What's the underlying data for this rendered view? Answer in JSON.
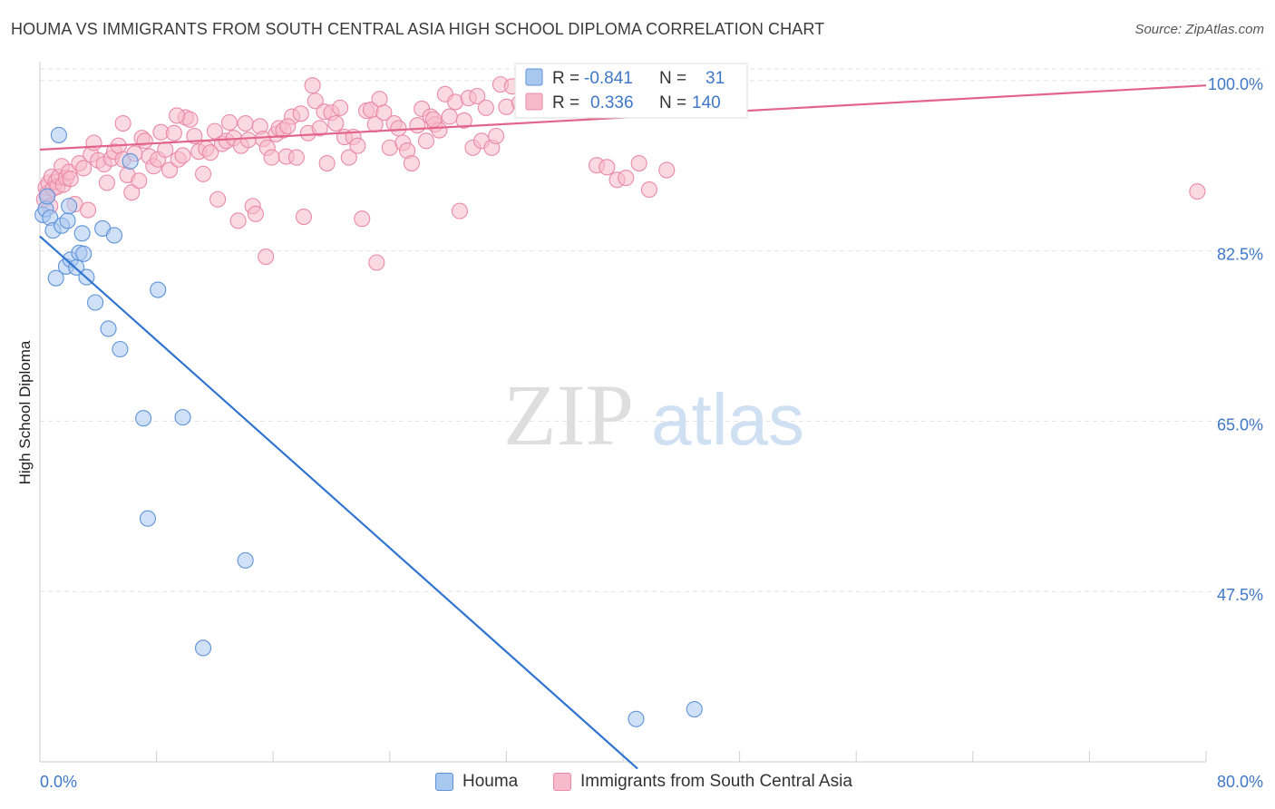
{
  "header": {
    "title": "HOUMA VS IMMIGRANTS FROM SOUTH CENTRAL ASIA HIGH SCHOOL DIPLOMA CORRELATION CHART",
    "source": "Source: ZipAtlas.com"
  },
  "watermark": {
    "zip": "ZIP",
    "atlas": "atlas"
  },
  "colors": {
    "houma_fill": "#a9c8f0",
    "houma_stroke": "#5e93d9",
    "houma_line": "#2f74d0",
    "immig_fill": "#f7b9cc",
    "immig_stroke": "#e98aa8",
    "immig_line": "#e2638c",
    "tick_label": "#3f78c8",
    "grid": "#e3e3e3"
  },
  "chart_data": {
    "type": "scatter",
    "title": "HOUMA VS IMMIGRANTS FROM SOUTH CENTRAL ASIA HIGH SCHOOL DIPLOMA CORRELATION CHART",
    "xlabel": "",
    "ylabel": "High School Diploma",
    "xlim": [
      0,
      80
    ],
    "ylim": [
      30,
      102.5
    ],
    "x_tick_labels": [
      "0.0%",
      "80.0%"
    ],
    "y_ticks": [
      {
        "value": 100,
        "label": "100.0%"
      },
      {
        "value": 82.5,
        "label": "82.5%"
      },
      {
        "value": 65,
        "label": "65.0%"
      },
      {
        "value": 47.5,
        "label": "47.5%"
      }
    ],
    "grid": true,
    "legend_position": "top-center",
    "legend": [
      {
        "r_label": "R =",
        "r_value": "-0.841",
        "n_label": "N =",
        "n_value": "31"
      },
      {
        "r_label": "R =",
        "r_value": "0.336",
        "n_label": "N =",
        "n_value": "140"
      }
    ],
    "bottom_legend": [
      "Houma",
      "Immigrants from South Central Asia"
    ],
    "series": [
      {
        "name": "Houma",
        "points": [
          [
            0.2,
            86.2
          ],
          [
            0.4,
            86.8
          ],
          [
            0.5,
            88.1
          ],
          [
            0.7,
            85.9
          ],
          [
            0.9,
            84.6
          ],
          [
            1.1,
            79.7
          ],
          [
            1.3,
            94.4
          ],
          [
            1.5,
            85.1
          ],
          [
            1.8,
            80.9
          ],
          [
            1.9,
            85.6
          ],
          [
            2.0,
            87.1
          ],
          [
            2.1,
            81.6
          ],
          [
            2.5,
            80.8
          ],
          [
            2.7,
            82.3
          ],
          [
            2.9,
            84.3
          ],
          [
            3.0,
            82.2
          ],
          [
            3.2,
            79.8
          ],
          [
            3.8,
            77.2
          ],
          [
            4.3,
            84.8
          ],
          [
            4.7,
            74.5
          ],
          [
            5.1,
            84.1
          ],
          [
            5.5,
            72.4
          ],
          [
            6.2,
            91.7
          ],
          [
            7.1,
            65.3
          ],
          [
            7.4,
            55.0
          ],
          [
            8.1,
            78.5
          ],
          [
            9.8,
            65.4
          ],
          [
            11.2,
            41.7
          ],
          [
            14.1,
            50.7
          ],
          [
            40.9,
            34.4
          ],
          [
            44.9,
            35.4
          ]
        ],
        "trendline": [
          [
            0,
            84.0
          ],
          [
            41,
            29.3
          ]
        ]
      },
      {
        "name": "Immigrants from South Central Asia",
        "points": [
          [
            0.3,
            87.8
          ],
          [
            0.4,
            89.0
          ],
          [
            0.5,
            88.4
          ],
          [
            0.6,
            89.5
          ],
          [
            0.7,
            87.1
          ],
          [
            0.8,
            90.1
          ],
          [
            0.9,
            88.9
          ],
          [
            1.1,
            89.6
          ],
          [
            1.2,
            89.1
          ],
          [
            1.3,
            90.1
          ],
          [
            1.5,
            91.2
          ],
          [
            1.6,
            89.3
          ],
          [
            1.8,
            90.0
          ],
          [
            2.0,
            90.6
          ],
          [
            2.1,
            89.9
          ],
          [
            2.4,
            87.3
          ],
          [
            2.7,
            91.5
          ],
          [
            3.0,
            91.0
          ],
          [
            3.3,
            86.7
          ],
          [
            3.5,
            92.4
          ],
          [
            3.7,
            93.6
          ],
          [
            4.0,
            91.8
          ],
          [
            4.4,
            91.4
          ],
          [
            4.6,
            89.5
          ],
          [
            4.9,
            92.0
          ],
          [
            5.1,
            92.7
          ],
          [
            5.4,
            93.3
          ],
          [
            5.7,
            91.9
          ],
          [
            6.0,
            90.3
          ],
          [
            6.3,
            88.5
          ],
          [
            6.5,
            92.5
          ],
          [
            6.8,
            89.7
          ],
          [
            7.0,
            94.1
          ],
          [
            7.2,
            93.8
          ],
          [
            7.5,
            92.2
          ],
          [
            7.8,
            91.2
          ],
          [
            8.1,
            91.9
          ],
          [
            8.3,
            94.7
          ],
          [
            8.6,
            92.9
          ],
          [
            8.9,
            90.8
          ],
          [
            9.2,
            94.6
          ],
          [
            9.5,
            91.9
          ],
          [
            9.8,
            92.3
          ],
          [
            10.0,
            96.2
          ],
          [
            10.3,
            96.0
          ],
          [
            10.6,
            94.3
          ],
          [
            10.9,
            92.7
          ],
          [
            11.2,
            90.4
          ],
          [
            11.4,
            93.0
          ],
          [
            11.7,
            92.6
          ],
          [
            12.0,
            94.8
          ],
          [
            12.2,
            87.8
          ],
          [
            12.5,
            93.5
          ],
          [
            12.8,
            93.8
          ],
          [
            13.0,
            95.7
          ],
          [
            13.3,
            94.1
          ],
          [
            13.6,
            85.6
          ],
          [
            13.8,
            93.3
          ],
          [
            14.1,
            95.6
          ],
          [
            14.3,
            93.9
          ],
          [
            14.6,
            87.1
          ],
          [
            14.8,
            86.3
          ],
          [
            15.1,
            95.3
          ],
          [
            15.3,
            94.0
          ],
          [
            15.6,
            93.1
          ],
          [
            15.9,
            92.1
          ],
          [
            16.2,
            94.5
          ],
          [
            16.4,
            95.1
          ],
          [
            16.7,
            94.9
          ],
          [
            16.9,
            92.2
          ],
          [
            17.3,
            96.3
          ],
          [
            17.6,
            92.1
          ],
          [
            17.9,
            96.6
          ],
          [
            18.1,
            86.0
          ],
          [
            18.4,
            94.6
          ],
          [
            18.7,
            99.5
          ],
          [
            18.9,
            97.9
          ],
          [
            19.2,
            95.1
          ],
          [
            19.5,
            96.8
          ],
          [
            19.7,
            91.5
          ],
          [
            20.0,
            96.7
          ],
          [
            20.3,
            95.6
          ],
          [
            20.6,
            97.2
          ],
          [
            20.9,
            94.2
          ],
          [
            21.2,
            92.1
          ],
          [
            21.5,
            94.2
          ],
          [
            21.8,
            93.3
          ],
          [
            22.1,
            85.8
          ],
          [
            22.4,
            96.9
          ],
          [
            22.7,
            97.0
          ],
          [
            23.0,
            95.5
          ],
          [
            23.3,
            98.1
          ],
          [
            23.6,
            96.7
          ],
          [
            24.0,
            93.1
          ],
          [
            24.3,
            95.6
          ],
          [
            24.6,
            95.1
          ],
          [
            24.9,
            93.6
          ],
          [
            25.2,
            92.8
          ],
          [
            25.5,
            91.5
          ],
          [
            25.9,
            95.4
          ],
          [
            26.2,
            97.1
          ],
          [
            26.5,
            93.8
          ],
          [
            26.8,
            96.3
          ],
          [
            27.1,
            95.5
          ],
          [
            27.4,
            94.9
          ],
          [
            27.8,
            98.6
          ],
          [
            28.1,
            96.3
          ],
          [
            28.5,
            97.8
          ],
          [
            28.8,
            86.6
          ],
          [
            29.1,
            95.9
          ],
          [
            29.4,
            98.2
          ],
          [
            29.7,
            93.1
          ],
          [
            30.0,
            98.4
          ],
          [
            30.3,
            93.8
          ],
          [
            30.6,
            97.2
          ],
          [
            31.0,
            93.1
          ],
          [
            31.3,
            94.3
          ],
          [
            31.6,
            99.6
          ],
          [
            32.0,
            97.3
          ],
          [
            32.4,
            99.4
          ],
          [
            32.9,
            97.7
          ],
          [
            33.3,
            99.1
          ],
          [
            34.0,
            97.8
          ],
          [
            35.6,
            98.5
          ],
          [
            36.2,
            98.8
          ],
          [
            36.9,
            98.3
          ],
          [
            38.2,
            91.3
          ],
          [
            38.9,
            91.1
          ],
          [
            39.6,
            89.8
          ],
          [
            40.2,
            90.0
          ],
          [
            41.1,
            91.5
          ],
          [
            41.8,
            88.8
          ],
          [
            43.0,
            90.8
          ],
          [
            79.4,
            88.6
          ],
          [
            15.5,
            81.9
          ],
          [
            23.1,
            81.3
          ],
          [
            5.7,
            95.6
          ],
          [
            9.4,
            96.4
          ],
          [
            17.0,
            95.3
          ],
          [
            27.0,
            96.0
          ]
        ],
        "trendline": [
          [
            0,
            92.9
          ],
          [
            80,
            99.5
          ]
        ]
      }
    ]
  }
}
